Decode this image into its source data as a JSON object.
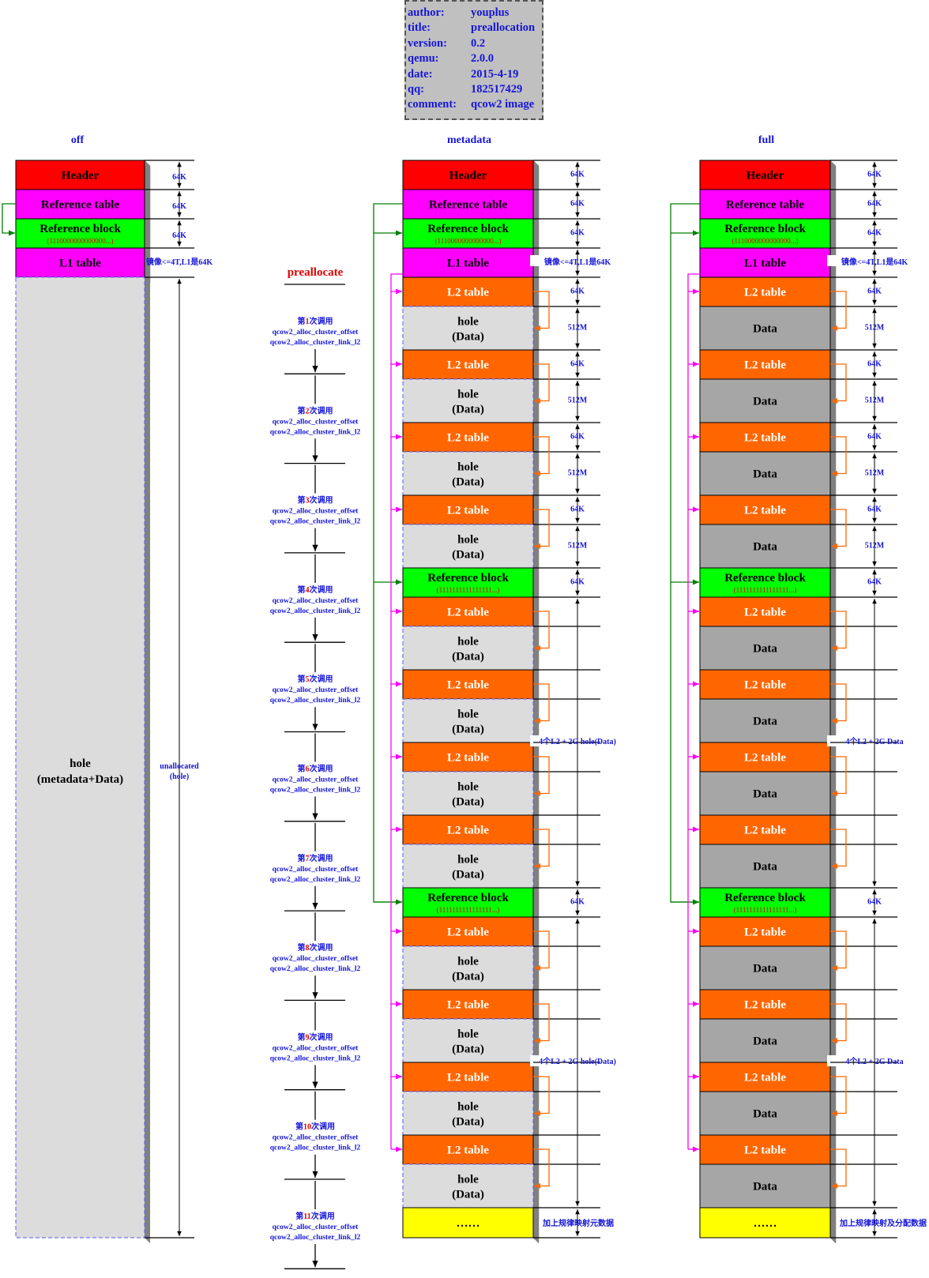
{
  "info": [
    {
      "key": "author:",
      "value": "youplus"
    },
    {
      "key": "title:",
      "value": "preallocation"
    },
    {
      "key": "version:",
      "value": "0.2"
    },
    {
      "key": "qemu:",
      "value": "2.0.0"
    },
    {
      "key": "date:",
      "value": "2015-4-19"
    },
    {
      "key": "qq:",
      "value": "182517429"
    },
    {
      "key": "comment:",
      "value": "qcow2 image"
    }
  ],
  "columns": {
    "off": "off",
    "metadata": "metadata",
    "full": "full"
  },
  "blocks": {
    "header": "Header",
    "reftable": "Reference table",
    "refblock": "Reference block",
    "refbits_first": "(1110000000000000...)",
    "refbits": "(1111111111111111...)",
    "l1": "L1 table",
    "l2": "L2 table",
    "hole": "hole",
    "data_paren": "(Data)",
    "data": "Data",
    "dots": "……",
    "off_hole_1": "hole",
    "off_hole_2": "(metadata+Data)"
  },
  "dims": {
    "k64": "64K",
    "m512": "512M",
    "l1_note": "镜像<=4T,L1是64K",
    "unalloc_1": "unallocated",
    "unalloc_2": "(hole)",
    "meta_group": "4个L2 + 2G hole(Data)",
    "full_group": "4个L2 + 2G Data",
    "meta_tail": "加上规律映射元数据",
    "full_tail": "加上规律映射及分配数据"
  },
  "preallocate": {
    "title": "preallocate",
    "call_prefix": "第",
    "call_suffix": "次调用",
    "fn1": "qcow2_alloc_cluster_offset",
    "fn2": "qcow2_alloc_cluster_link_l2",
    "calls": [
      "1",
      "2",
      "3",
      "4",
      "5",
      "6",
      "7",
      "8",
      "9",
      "10",
      "11"
    ],
    "ellipsis": "..."
  },
  "colors": {
    "header": "#ff0000",
    "reftable": "#ff00ff",
    "refblock": "#00ff00",
    "l1": "#ff00ff",
    "l2": "#ff6600",
    "hole": "#dcdcdc",
    "data": "#a6a6a6",
    "tail": "#ffff00",
    "label_blue": "#1515d8",
    "red_text": "#e00000"
  }
}
